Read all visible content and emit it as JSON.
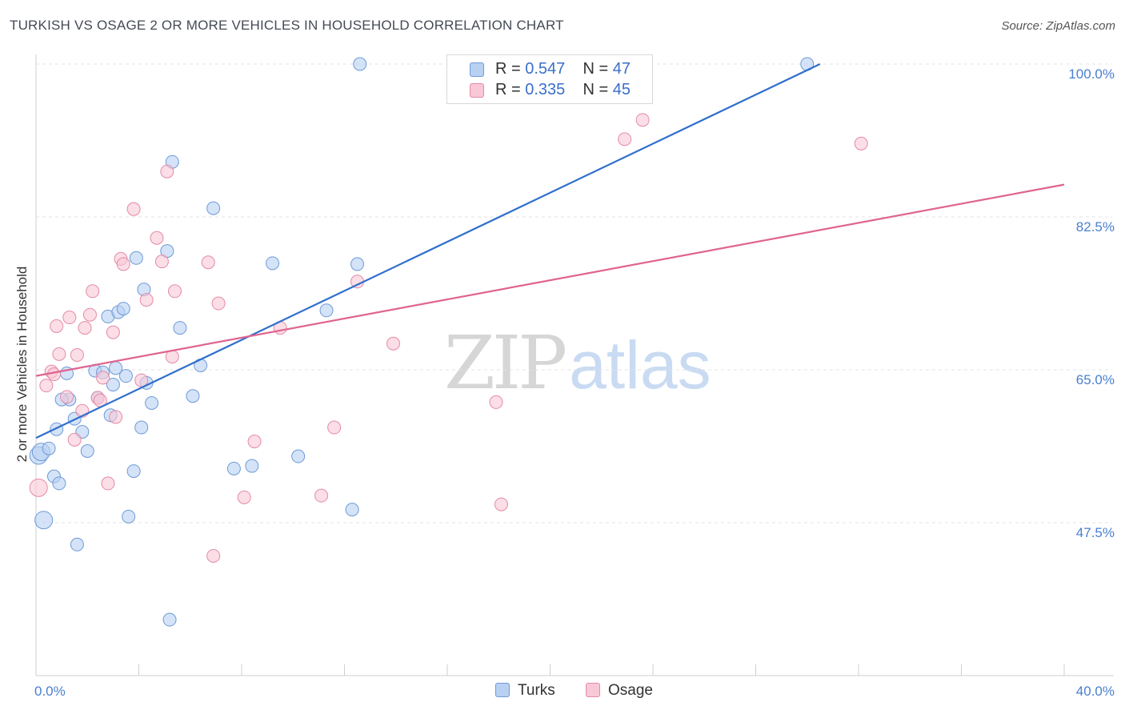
{
  "title": "TURKISH VS OSAGE 2 OR MORE VEHICLES IN HOUSEHOLD CORRELATION CHART",
  "source": "Source: ZipAtlas.com",
  "watermark": {
    "zip": "ZIP",
    "atlas": "atlas"
  },
  "legend_top": [
    {
      "r_label": "R = ",
      "r_value": "0.547",
      "n_label": "N = ",
      "n_value": "47"
    },
    {
      "r_label": "R = ",
      "r_value": "0.335",
      "n_label": "N = ",
      "n_value": "45"
    }
  ],
  "legend_bottom": [
    "Turks",
    "Osage"
  ],
  "colors": {
    "turks_fill": "#b8d0f2",
    "turks_stroke": "#6e9ad8",
    "turks_line": "#2f6fcd",
    "osage_fill": "#f8c8d6",
    "osage_stroke": "#e48aa8",
    "osage_line": "#e0648f",
    "tick_text": "#4a7fd0",
    "grid": "#e3e3e3"
  },
  "chart_data": {
    "type": "scatter",
    "xlabel": "",
    "ylabel": "2 or more Vehicles in Household",
    "xlim": [
      0,
      40
    ],
    "ylim": [
      31.5,
      101.5
    ],
    "x_tick_labels": [
      {
        "value": 0,
        "label": "0.0%"
      },
      {
        "value": 40,
        "label": "40.0%"
      }
    ],
    "y_tick_labels": [
      {
        "value": 47.5,
        "label": "47.5%"
      },
      {
        "value": 65.0,
        "label": "65.0%"
      },
      {
        "value": 82.5,
        "label": "82.5%"
      },
      {
        "value": 100.0,
        "label": "100.0%"
      }
    ],
    "grid": true,
    "legend_placement": "top-center",
    "series": [
      {
        "name": "Turks",
        "points": [
          [
            0.1,
            55.2
          ],
          [
            0.2,
            55.6
          ],
          [
            0.3,
            47.8
          ],
          [
            0.5,
            56.0
          ],
          [
            0.7,
            52.8
          ],
          [
            0.8,
            58.2
          ],
          [
            0.9,
            52.0
          ],
          [
            1.2,
            64.6
          ],
          [
            1.3,
            61.6
          ],
          [
            1.5,
            59.4
          ],
          [
            1.6,
            45.0
          ],
          [
            1.8,
            57.9
          ],
          [
            2.0,
            55.7
          ],
          [
            2.3,
            64.9
          ],
          [
            2.4,
            61.8
          ],
          [
            2.6,
            64.7
          ],
          [
            2.8,
            71.1
          ],
          [
            2.9,
            59.8
          ],
          [
            3.0,
            63.3
          ],
          [
            3.1,
            65.2
          ],
          [
            3.2,
            71.6
          ],
          [
            3.4,
            72.0
          ],
          [
            3.6,
            48.2
          ],
          [
            3.8,
            53.4
          ],
          [
            3.9,
            77.8
          ],
          [
            4.1,
            58.4
          ],
          [
            4.2,
            74.2
          ],
          [
            4.3,
            63.5
          ],
          [
            4.5,
            61.2
          ],
          [
            5.1,
            78.6
          ],
          [
            5.3,
            88.8
          ],
          [
            5.6,
            69.8
          ],
          [
            5.2,
            36.4
          ],
          [
            6.1,
            62.0
          ],
          [
            6.4,
            65.5
          ],
          [
            6.9,
            83.5
          ],
          [
            7.7,
            53.7
          ],
          [
            8.4,
            54.0
          ],
          [
            9.2,
            77.2
          ],
          [
            10.2,
            55.1
          ],
          [
            11.3,
            71.8
          ],
          [
            12.3,
            49.0
          ],
          [
            12.5,
            77.1
          ],
          [
            12.6,
            100.0
          ],
          [
            30.0,
            100.0
          ],
          [
            1.0,
            61.6
          ],
          [
            3.5,
            64.3
          ]
        ]
      },
      {
        "name": "Osage",
        "points": [
          [
            0.1,
            51.5
          ],
          [
            0.4,
            63.2
          ],
          [
            0.6,
            64.8
          ],
          [
            0.8,
            70.0
          ],
          [
            0.9,
            66.8
          ],
          [
            1.2,
            61.9
          ],
          [
            1.3,
            71.0
          ],
          [
            1.5,
            57.0
          ],
          [
            1.6,
            66.7
          ],
          [
            1.8,
            60.3
          ],
          [
            1.9,
            69.8
          ],
          [
            2.1,
            71.3
          ],
          [
            2.2,
            74.0
          ],
          [
            2.4,
            61.8
          ],
          [
            2.6,
            64.1
          ],
          [
            2.8,
            52.0
          ],
          [
            3.0,
            69.3
          ],
          [
            3.1,
            59.6
          ],
          [
            3.3,
            77.7
          ],
          [
            3.4,
            77.1
          ],
          [
            3.8,
            83.4
          ],
          [
            4.1,
            63.8
          ],
          [
            4.3,
            73.0
          ],
          [
            4.7,
            80.1
          ],
          [
            4.9,
            77.4
          ],
          [
            5.1,
            87.7
          ],
          [
            5.3,
            66.5
          ],
          [
            5.4,
            74.0
          ],
          [
            6.7,
            77.3
          ],
          [
            6.9,
            43.7
          ],
          [
            7.1,
            72.6
          ],
          [
            8.1,
            50.4
          ],
          [
            8.5,
            56.8
          ],
          [
            9.5,
            69.8
          ],
          [
            11.1,
            50.6
          ],
          [
            11.6,
            58.4
          ],
          [
            12.5,
            75.1
          ],
          [
            13.9,
            68.0
          ],
          [
            17.9,
            61.3
          ],
          [
            18.1,
            49.6
          ],
          [
            22.9,
            91.4
          ],
          [
            23.6,
            93.6
          ],
          [
            32.1,
            90.9
          ],
          [
            2.5,
            61.5
          ],
          [
            0.7,
            64.5
          ]
        ]
      }
    ],
    "trend_lines": [
      {
        "name": "Turks",
        "x": [
          0.0,
          30.5
        ],
        "y": [
          57.2,
          100.0
        ]
      },
      {
        "name": "Osage",
        "x": [
          0.0,
          40.0
        ],
        "y": [
          64.3,
          86.2
        ]
      }
    ]
  }
}
